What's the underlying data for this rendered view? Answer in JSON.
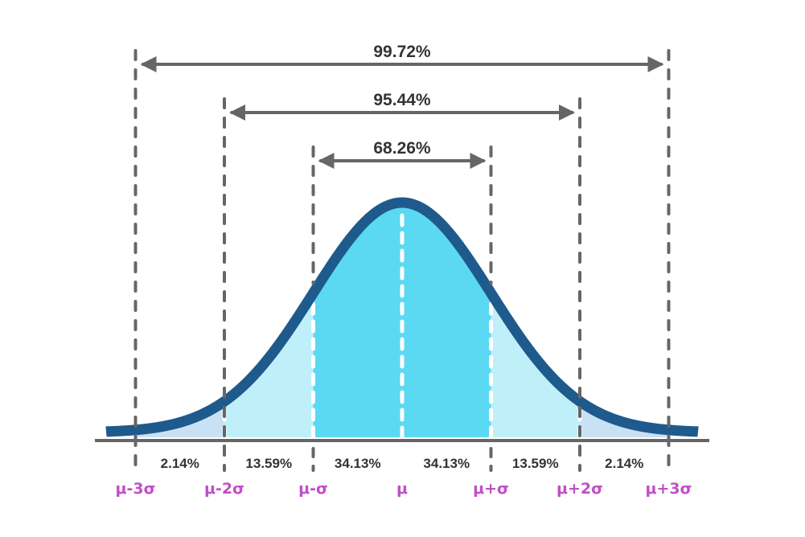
{
  "ranges": [
    {
      "label": "99.72%",
      "from": -3,
      "to": 3
    },
    {
      "label": "95.44%",
      "from": -2,
      "to": 2
    },
    {
      "label": "68.26%",
      "from": -1,
      "to": 1
    }
  ],
  "segments": [
    {
      "from": -3,
      "to": -2,
      "label": "2.14%"
    },
    {
      "from": -2,
      "to": -1,
      "label": "13.59%"
    },
    {
      "from": -1,
      "to": 0,
      "label": "34.13%"
    },
    {
      "from": 0,
      "to": 1,
      "label": "34.13%"
    },
    {
      "from": 1,
      "to": 2,
      "label": "13.59%"
    },
    {
      "from": 2,
      "to": 3,
      "label": "2.14%"
    }
  ],
  "sigma_labels": [
    {
      "k": -3,
      "label": "μ-3σ"
    },
    {
      "k": -2,
      "label": "μ-2σ"
    },
    {
      "k": -1,
      "label": "μ-σ"
    },
    {
      "k": 0,
      "label": "μ"
    },
    {
      "k": 1,
      "label": "μ+σ"
    },
    {
      "k": 2,
      "label": "μ+2σ"
    },
    {
      "k": 3,
      "label": "μ+3σ"
    }
  ],
  "colors": {
    "curve": "#1f5a8c",
    "inner": "#5bd9f2",
    "middle": "#bff0fa",
    "outer": "#c9e1f4",
    "dashed": "#666666",
    "arrow": "#666666",
    "axis": "#666666",
    "sigma_text": "#c04fc8",
    "label_text": "#333333"
  }
}
